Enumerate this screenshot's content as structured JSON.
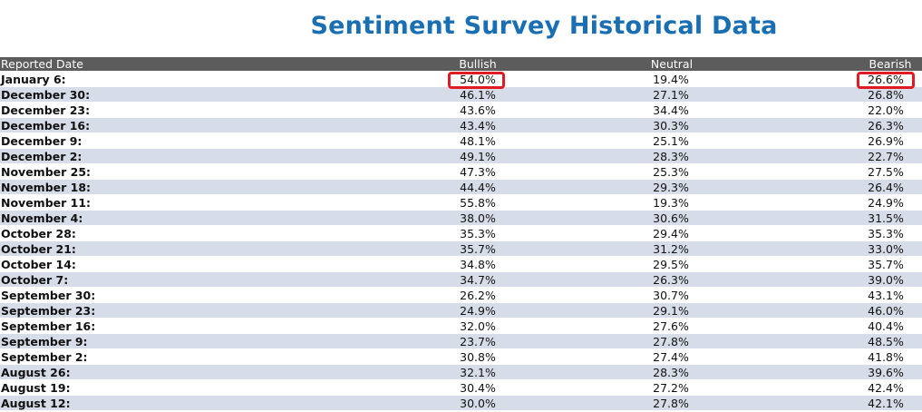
{
  "title": "Sentiment Survey Historical Data",
  "table": {
    "headers": {
      "date": "Reported Date",
      "bullish": "Bullish",
      "neutral": "Neutral",
      "bearish": "Bearish"
    },
    "rows": [
      {
        "date": "January 6:",
        "bullish": "54.0%",
        "neutral": "19.4%",
        "bearish": "26.6%"
      },
      {
        "date": "December 30:",
        "bullish": "46.1%",
        "neutral": "27.1%",
        "bearish": "26.8%"
      },
      {
        "date": "December 23:",
        "bullish": "43.6%",
        "neutral": "34.4%",
        "bearish": "22.0%"
      },
      {
        "date": "December 16:",
        "bullish": "43.4%",
        "neutral": "30.3%",
        "bearish": "26.3%"
      },
      {
        "date": "December 9:",
        "bullish": "48.1%",
        "neutral": "25.1%",
        "bearish": "26.9%"
      },
      {
        "date": "December 2:",
        "bullish": "49.1%",
        "neutral": "28.3%",
        "bearish": "22.7%"
      },
      {
        "date": "November 25:",
        "bullish": "47.3%",
        "neutral": "25.3%",
        "bearish": "27.5%"
      },
      {
        "date": "November 18:",
        "bullish": "44.4%",
        "neutral": "29.3%",
        "bearish": "26.4%"
      },
      {
        "date": "November 11:",
        "bullish": "55.8%",
        "neutral": "19.3%",
        "bearish": "24.9%"
      },
      {
        "date": "November 4:",
        "bullish": "38.0%",
        "neutral": "30.6%",
        "bearish": "31.5%"
      },
      {
        "date": "October 28:",
        "bullish": "35.3%",
        "neutral": "29.4%",
        "bearish": "35.3%"
      },
      {
        "date": "October 21:",
        "bullish": "35.7%",
        "neutral": "31.2%",
        "bearish": "33.0%"
      },
      {
        "date": "October 14:",
        "bullish": "34.8%",
        "neutral": "29.5%",
        "bearish": "35.7%"
      },
      {
        "date": "October 7:",
        "bullish": "34.7%",
        "neutral": "26.3%",
        "bearish": "39.0%"
      },
      {
        "date": "September 30:",
        "bullish": "26.2%",
        "neutral": "30.7%",
        "bearish": "43.1%"
      },
      {
        "date": "September 23:",
        "bullish": "24.9%",
        "neutral": "29.1%",
        "bearish": "46.0%"
      },
      {
        "date": "September 16:",
        "bullish": "32.0%",
        "neutral": "27.6%",
        "bearish": "40.4%"
      },
      {
        "date": "September 9:",
        "bullish": "23.7%",
        "neutral": "27.8%",
        "bearish": "48.5%"
      },
      {
        "date": "September 2:",
        "bullish": "30.8%",
        "neutral": "27.4%",
        "bearish": "41.8%"
      },
      {
        "date": "August 26:",
        "bullish": "32.1%",
        "neutral": "28.3%",
        "bearish": "39.6%"
      },
      {
        "date": "August 19:",
        "bullish": "30.4%",
        "neutral": "27.2%",
        "bearish": "42.4%"
      },
      {
        "date": "August 12:",
        "bullish": "30.0%",
        "neutral": "27.8%",
        "bearish": "42.1%"
      }
    ]
  },
  "colors": {
    "title": "#1a6fb3",
    "header_bg": "#5c5c5c",
    "row_alt_bg": "#d7dde8",
    "highlight": "#e01b24"
  }
}
